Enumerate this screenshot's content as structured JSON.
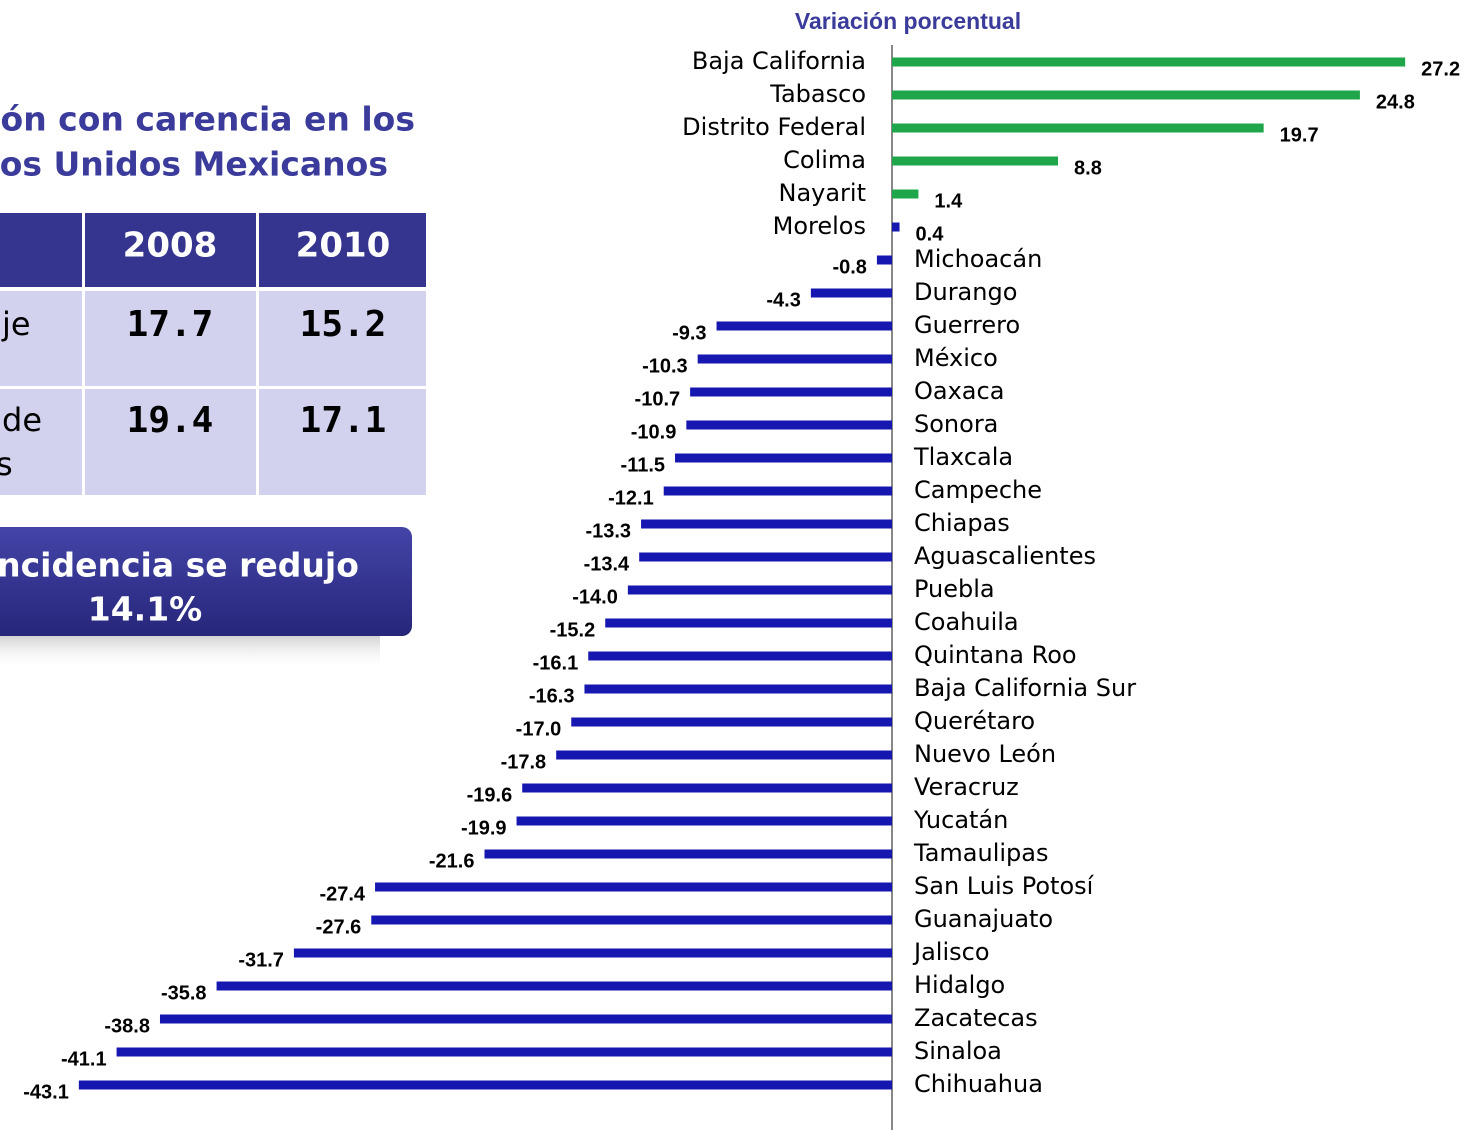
{
  "slide": {
    "title_lines": [
      "ón con carencia en los",
      "os Unidos Mexicanos"
    ],
    "table": {
      "header": [
        "2008",
        "2010"
      ],
      "rows": [
        [
          "je",
          "17.7",
          "15.2"
        ],
        [
          [
            "de",
            "s"
          ],
          "19.4",
          "17.1"
        ]
      ]
    },
    "callout": [
      "ncidencia se redujo",
      "14.1%"
    ]
  },
  "chart_data": {
    "type": "hbar",
    "subtitle": "Variación porcentual",
    "categories": [
      "Baja California",
      "Tabasco",
      "Distrito Federal",
      "Colima",
      "Nayarit",
      "Morelos",
      "Michoacán",
      "Durango",
      "Guerrero",
      "México",
      "Oaxaca",
      "Sonora",
      "Tlaxcala",
      "Campeche",
      "Chiapas",
      "Aguascalientes",
      "Puebla",
      "Coahuila",
      "Quintana Roo",
      "Baja California Sur",
      "Querétaro",
      "Nuevo León",
      "Veracruz",
      "Yucatán",
      "Tamaulipas",
      "San Luis Potosí",
      "Guanajuato",
      "Jalisco",
      "Hidalgo",
      "Zacatecas",
      "Sinaloa",
      "Chihuahua"
    ],
    "values": [
      27.2,
      24.8,
      19.7,
      8.8,
      1.4,
      0.4,
      -0.8,
      -4.3,
      -9.3,
      -10.3,
      -10.7,
      -10.9,
      -11.5,
      -12.1,
      -13.3,
      -13.4,
      -14.0,
      -15.2,
      -16.1,
      -16.3,
      -17.0,
      -17.8,
      -19.6,
      -19.9,
      -21.6,
      -27.4,
      -27.6,
      -31.7,
      -35.8,
      -38.8,
      -41.1,
      -43.1
    ],
    "value_labels": [
      "27.2",
      "24.8",
      "19.7",
      "8.8",
      "1.4",
      "0.4",
      "-0.8",
      "-4.3",
      "-9.3",
      "-10.3",
      "-10.7",
      "-10.9",
      "-11.5",
      "-12.1",
      "-13.3",
      "-13.4",
      "-14.0",
      "-15.2",
      "-16.1",
      "-16.3",
      "-17.0",
      "-17.8",
      "-19.6",
      "-19.9",
      "-21.6",
      "-27.4",
      "-27.6",
      "-31.7",
      "-35.8",
      "-38.8",
      "-41.1",
      "-43.1"
    ],
    "colors": [
      "#1fa64a",
      "#1fa64a",
      "#1fa64a",
      "#1fa64a",
      "#1fa64a",
      "#1616b0",
      "#1616b0",
      "#1616b0",
      "#1616b0",
      "#1616b0",
      "#1616b0",
      "#1616b0",
      "#1616b0",
      "#1616b0",
      "#1616b0",
      "#1616b0",
      "#1616b0",
      "#1616b0",
      "#1616b0",
      "#1616b0",
      "#1616b0",
      "#1616b0",
      "#1616b0",
      "#1616b0",
      "#1616b0",
      "#1616b0",
      "#1616b0",
      "#1616b0",
      "#1616b0",
      "#1616b0",
      "#1616b0",
      "#1616b0"
    ],
    "xlim": [
      -45,
      30
    ]
  }
}
